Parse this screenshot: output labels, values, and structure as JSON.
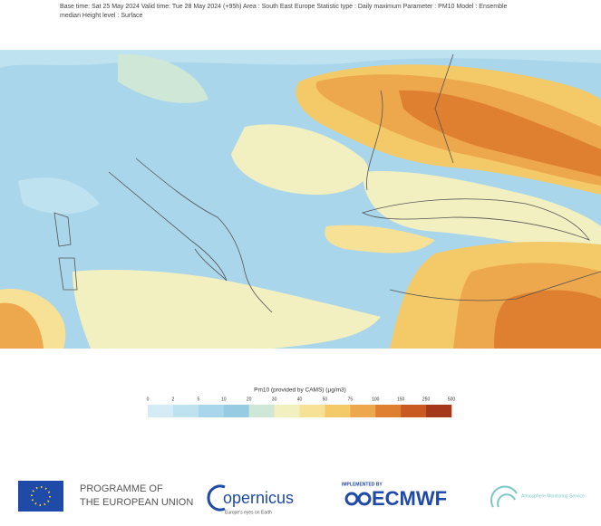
{
  "header": {
    "lines": [
      "Base time: Sat 25 May 2024 Valid time: Tue 28 May 2024 (+95h) Area : South East Europe Statistic type : Daily maximum Parameter : PM10 Model : Ensemble",
      "median Height level : Surface"
    ]
  },
  "legend": {
    "title": "Pm10 (provided by CAMS) (µg/m3)",
    "ticks": [
      0,
      2,
      5,
      10,
      20,
      30,
      40,
      50,
      75,
      100,
      150,
      250,
      500
    ],
    "colors": [
      "#d3ecf6",
      "#bfe2f1",
      "#a9d6ea",
      "#96cbe1",
      "#cfe7d6",
      "#f2efc0",
      "#f6e197",
      "#f4ca68",
      "#eda74c",
      "#df8030",
      "#c95a22",
      "#a5371b"
    ]
  },
  "footer": {
    "eu_line1": "PROGRAMME OF",
    "eu_line2": "THE EUROPEAN UNION",
    "copernicus": "opernicus",
    "copernicus_tagline": "Europe's eyes on Earth",
    "implemented_by": "IMPLEMENTED BY",
    "ecmwf": "ECMWF",
    "cams": "Atmosphere Monitoring Service"
  }
}
